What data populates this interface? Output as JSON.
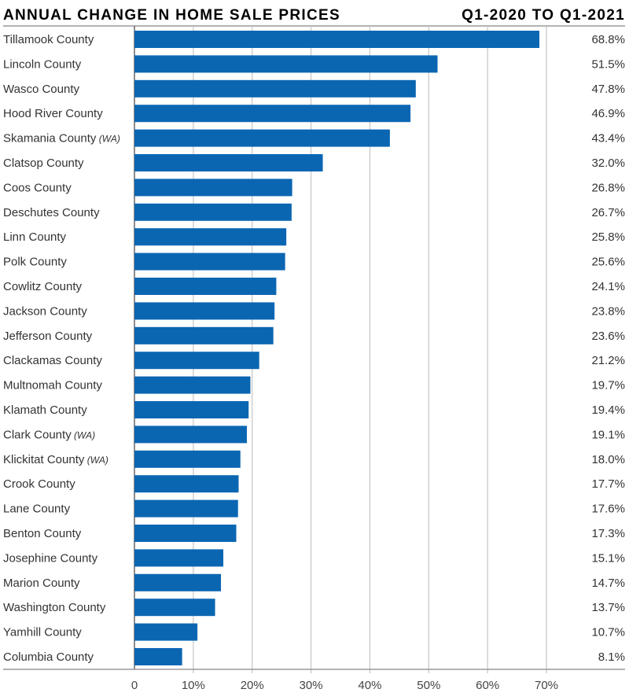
{
  "colors": {
    "bar": "#0b66b2",
    "title": "#17375e",
    "grid": "#c8c8c8",
    "axis": "#9a9a9a"
  },
  "chart_data": {
    "type": "bar",
    "orientation": "horizontal",
    "title": "ANNUAL CHANGE IN HOME SALE PRICES",
    "subtitle": "Q1-2020 TO Q1-2021",
    "categories": [
      {
        "name": "Tillamook County",
        "suffix": ""
      },
      {
        "name": "Lincoln County",
        "suffix": ""
      },
      {
        "name": "Wasco County",
        "suffix": ""
      },
      {
        "name": "Hood River County",
        "suffix": ""
      },
      {
        "name": "Skamania County",
        "suffix": "(WA)"
      },
      {
        "name": "Clatsop County",
        "suffix": ""
      },
      {
        "name": "Coos County",
        "suffix": ""
      },
      {
        "name": "Deschutes County",
        "suffix": ""
      },
      {
        "name": "Linn County",
        "suffix": ""
      },
      {
        "name": "Polk County",
        "suffix": ""
      },
      {
        "name": "Cowlitz County",
        "suffix": ""
      },
      {
        "name": "Jackson County",
        "suffix": ""
      },
      {
        "name": "Jefferson County",
        "suffix": ""
      },
      {
        "name": "Clackamas County",
        "suffix": ""
      },
      {
        "name": "Multnomah County",
        "suffix": ""
      },
      {
        "name": "Klamath County",
        "suffix": ""
      },
      {
        "name": "Clark County",
        "suffix": "(WA)"
      },
      {
        "name": "Klickitat County",
        "suffix": "(WA)"
      },
      {
        "name": "Crook County",
        "suffix": ""
      },
      {
        "name": "Lane County",
        "suffix": ""
      },
      {
        "name": "Benton County",
        "suffix": ""
      },
      {
        "name": "Josephine County",
        "suffix": ""
      },
      {
        "name": "Marion County",
        "suffix": ""
      },
      {
        "name": "Washington County",
        "suffix": ""
      },
      {
        "name": "Yamhill County",
        "suffix": ""
      },
      {
        "name": "Columbia County",
        "suffix": ""
      }
    ],
    "values": [
      68.8,
      51.5,
      47.8,
      46.9,
      43.4,
      32.0,
      26.8,
      26.7,
      25.8,
      25.6,
      24.1,
      23.8,
      23.6,
      21.2,
      19.7,
      19.4,
      19.1,
      18.0,
      17.7,
      17.6,
      17.3,
      15.1,
      14.7,
      13.7,
      10.7,
      8.1
    ],
    "value_labels": [
      "68.8%",
      "51.5%",
      "47.8%",
      "46.9%",
      "43.4%",
      "32.0%",
      "26.8%",
      "26.7%",
      "25.8%",
      "25.6%",
      "24.1%",
      "23.8%",
      "23.6%",
      "21.2%",
      "19.7%",
      "19.4%",
      "19.1%",
      "18.0%",
      "17.7%",
      "17.6%",
      "17.3%",
      "15.1%",
      "14.7%",
      "13.7%",
      "10.7%",
      "8.1%"
    ],
    "xlim": [
      0,
      70
    ],
    "xticks": [
      0,
      10,
      20,
      30,
      40,
      50,
      60,
      70
    ],
    "xtick_labels": [
      "0",
      "10%",
      "20%",
      "30%",
      "40%",
      "50%",
      "60%",
      "70%"
    ],
    "grid": true,
    "legend": "none"
  }
}
